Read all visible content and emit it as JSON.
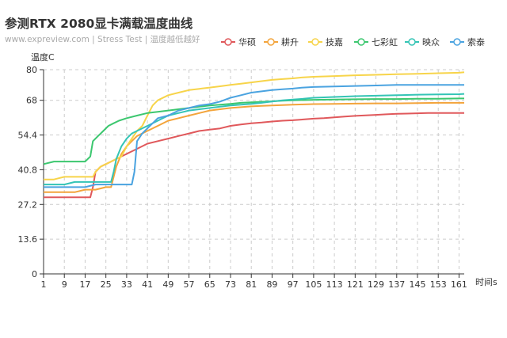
{
  "header": {
    "title": "参测RTX 2080显卡满载温度曲线",
    "subtitle": "www.expreview.com | Stress Test | 温度越低越好"
  },
  "chart_data": {
    "type": "line",
    "title": "参测RTX 2080显卡满载温度曲线",
    "subtitle": "www.expreview.com | Stress Test | 温度越低越好",
    "xlabel": "时间s",
    "ylabel": "温度C",
    "xlim": [
      1,
      163
    ],
    "ylim": [
      0,
      80
    ],
    "x_ticks": [
      1,
      9,
      17,
      25,
      33,
      41,
      49,
      57,
      65,
      73,
      81,
      89,
      97,
      105,
      113,
      121,
      129,
      137,
      145,
      153,
      161
    ],
    "y_ticks": [
      "0",
      "13.6",
      "27.2",
      "40.8",
      "54.4",
      "68",
      "80"
    ],
    "grid": true,
    "legend_position": "top-right",
    "series": [
      {
        "name": "华硕",
        "color": "#e0585b",
        "points": [
          [
            1,
            30
          ],
          [
            9,
            30
          ],
          [
            13,
            30
          ],
          [
            17,
            30
          ],
          [
            19,
            30
          ],
          [
            20,
            34
          ],
          [
            21,
            40
          ],
          [
            23,
            42
          ],
          [
            25,
            43
          ],
          [
            29,
            45
          ],
          [
            33,
            47
          ],
          [
            37,
            49
          ],
          [
            41,
            51
          ],
          [
            45,
            52
          ],
          [
            49,
            53
          ],
          [
            53,
            54
          ],
          [
            57,
            55
          ],
          [
            61,
            56
          ],
          [
            65,
            56.5
          ],
          [
            69,
            57
          ],
          [
            73,
            58
          ],
          [
            77,
            58.5
          ],
          [
            81,
            59
          ],
          [
            85,
            59.3
          ],
          [
            89,
            59.7
          ],
          [
            93,
            60
          ],
          [
            97,
            60.2
          ],
          [
            101,
            60.5
          ],
          [
            105,
            60.8
          ],
          [
            109,
            61
          ],
          [
            113,
            61.3
          ],
          [
            117,
            61.6
          ],
          [
            121,
            61.9
          ],
          [
            125,
            62.1
          ],
          [
            129,
            62.3
          ],
          [
            133,
            62.5
          ],
          [
            137,
            62.7
          ],
          [
            141,
            62.8
          ],
          [
            145,
            62.9
          ],
          [
            149,
            63
          ],
          [
            153,
            63
          ],
          [
            157,
            63
          ],
          [
            161,
            63
          ],
          [
            163,
            63
          ]
        ]
      },
      {
        "name": "耕升",
        "color": "#f3a43b",
        "points": [
          [
            1,
            32
          ],
          [
            9,
            32
          ],
          [
            13,
            32
          ],
          [
            17,
            33
          ],
          [
            21,
            33
          ],
          [
            25,
            34
          ],
          [
            27,
            34
          ],
          [
            28,
            38
          ],
          [
            29,
            42
          ],
          [
            31,
            47
          ],
          [
            33,
            50
          ],
          [
            35,
            52
          ],
          [
            37,
            54
          ],
          [
            41,
            56
          ],
          [
            45,
            58
          ],
          [
            49,
            60
          ],
          [
            53,
            61
          ],
          [
            57,
            62
          ],
          [
            61,
            63
          ],
          [
            65,
            64
          ],
          [
            69,
            64.5
          ],
          [
            73,
            65
          ],
          [
            77,
            65.3
          ],
          [
            81,
            65.6
          ],
          [
            85,
            65.8
          ],
          [
            89,
            66
          ],
          [
            93,
            66.1
          ],
          [
            97,
            66.3
          ],
          [
            101,
            66.4
          ],
          [
            105,
            66.5
          ],
          [
            113,
            66.6
          ],
          [
            121,
            66.7
          ],
          [
            129,
            66.8
          ],
          [
            137,
            66.8
          ],
          [
            145,
            66.9
          ],
          [
            153,
            67
          ],
          [
            161,
            67
          ],
          [
            163,
            67
          ]
        ]
      },
      {
        "name": "技嘉",
        "color": "#f7d44a",
        "points": [
          [
            1,
            37
          ],
          [
            5,
            37
          ],
          [
            9,
            38
          ],
          [
            13,
            38
          ],
          [
            17,
            38
          ],
          [
            20,
            38
          ],
          [
            21,
            40
          ],
          [
            23,
            42
          ],
          [
            25,
            43
          ],
          [
            27,
            44
          ],
          [
            29,
            45
          ],
          [
            31,
            46
          ],
          [
            33,
            50
          ],
          [
            35,
            53
          ],
          [
            37,
            56
          ],
          [
            39,
            58
          ],
          [
            41,
            62
          ],
          [
            43,
            66
          ],
          [
            45,
            68
          ],
          [
            49,
            70
          ],
          [
            53,
            71
          ],
          [
            57,
            72
          ],
          [
            61,
            72.5
          ],
          [
            65,
            73
          ],
          [
            69,
            73.5
          ],
          [
            73,
            74
          ],
          [
            77,
            74.5
          ],
          [
            81,
            75
          ],
          [
            85,
            75.5
          ],
          [
            89,
            76
          ],
          [
            93,
            76.3
          ],
          [
            97,
            76.6
          ],
          [
            101,
            77
          ],
          [
            105,
            77.2
          ],
          [
            113,
            77.5
          ],
          [
            121,
            77.8
          ],
          [
            129,
            78
          ],
          [
            137,
            78.2
          ],
          [
            145,
            78.4
          ],
          [
            153,
            78.6
          ],
          [
            161,
            78.8
          ],
          [
            163,
            79
          ]
        ]
      },
      {
        "name": "七彩虹",
        "color": "#3cc76f",
        "points": [
          [
            1,
            43
          ],
          [
            5,
            44
          ],
          [
            9,
            44
          ],
          [
            13,
            44
          ],
          [
            17,
            44
          ],
          [
            19,
            46
          ],
          [
            20,
            52
          ],
          [
            22,
            54
          ],
          [
            24,
            56
          ],
          [
            26,
            58
          ],
          [
            28,
            59
          ],
          [
            30,
            60
          ],
          [
            33,
            61
          ],
          [
            37,
            62
          ],
          [
            41,
            63
          ],
          [
            45,
            63.5
          ],
          [
            49,
            64
          ],
          [
            53,
            64.5
          ],
          [
            57,
            65
          ],
          [
            61,
            65.5
          ],
          [
            65,
            66
          ],
          [
            69,
            66.3
          ],
          [
            73,
            66.6
          ],
          [
            77,
            67
          ],
          [
            81,
            67.2
          ],
          [
            85,
            67.4
          ],
          [
            89,
            67.6
          ],
          [
            93,
            67.8
          ],
          [
            97,
            68
          ],
          [
            105,
            68.2
          ],
          [
            113,
            68.3
          ],
          [
            121,
            68.4
          ],
          [
            129,
            68.5
          ],
          [
            137,
            68.5
          ],
          [
            145,
            68.6
          ],
          [
            153,
            68.6
          ],
          [
            161,
            68.7
          ],
          [
            163,
            68.7
          ]
        ]
      },
      {
        "name": "映众",
        "color": "#34c4b5",
        "points": [
          [
            1,
            35
          ],
          [
            9,
            35
          ],
          [
            13,
            36
          ],
          [
            17,
            36
          ],
          [
            21,
            36
          ],
          [
            25,
            36
          ],
          [
            27,
            36
          ],
          [
            28,
            40
          ],
          [
            29,
            45
          ],
          [
            31,
            50
          ],
          [
            33,
            53
          ],
          [
            35,
            55
          ],
          [
            37,
            56
          ],
          [
            41,
            58
          ],
          [
            45,
            60
          ],
          [
            49,
            62
          ],
          [
            53,
            63
          ],
          [
            57,
            64
          ],
          [
            61,
            64.5
          ],
          [
            65,
            65
          ],
          [
            69,
            65.5
          ],
          [
            73,
            66
          ],
          [
            77,
            66.3
          ],
          [
            81,
            66.6
          ],
          [
            85,
            67
          ],
          [
            89,
            67.5
          ],
          [
            93,
            68
          ],
          [
            97,
            68.3
          ],
          [
            101,
            68.6
          ],
          [
            105,
            69
          ],
          [
            113,
            69.3
          ],
          [
            121,
            69.6
          ],
          [
            129,
            69.8
          ],
          [
            137,
            70
          ],
          [
            145,
            70.2
          ],
          [
            153,
            70.3
          ],
          [
            161,
            70.4
          ],
          [
            163,
            70.5
          ]
        ]
      },
      {
        "name": "索泰",
        "color": "#4aa3e0",
        "points": [
          [
            1,
            34
          ],
          [
            9,
            34
          ],
          [
            13,
            34
          ],
          [
            17,
            34
          ],
          [
            21,
            35
          ],
          [
            25,
            35
          ],
          [
            29,
            35
          ],
          [
            33,
            35
          ],
          [
            35,
            35
          ],
          [
            36,
            40
          ],
          [
            37,
            52
          ],
          [
            39,
            55
          ],
          [
            41,
            57
          ],
          [
            43,
            59
          ],
          [
            45,
            61
          ],
          [
            49,
            62
          ],
          [
            53,
            64
          ],
          [
            57,
            65
          ],
          [
            61,
            66
          ],
          [
            65,
            66.5
          ],
          [
            69,
            67.5
          ],
          [
            73,
            69
          ],
          [
            77,
            70
          ],
          [
            81,
            71
          ],
          [
            85,
            71.5
          ],
          [
            89,
            72
          ],
          [
            93,
            72.3
          ],
          [
            97,
            72.6
          ],
          [
            101,
            73
          ],
          [
            105,
            73.2
          ],
          [
            113,
            73.4
          ],
          [
            121,
            73.6
          ],
          [
            129,
            73.8
          ],
          [
            137,
            74
          ],
          [
            145,
            74
          ],
          [
            153,
            74
          ],
          [
            161,
            74
          ],
          [
            163,
            74
          ]
        ]
      }
    ]
  }
}
